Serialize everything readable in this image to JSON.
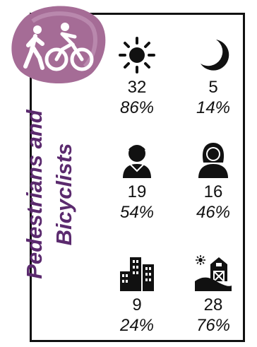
{
  "title_lines": [
    "Pedestrians and",
    "Bicyclists"
  ],
  "colors": {
    "accent": "#5b2a6e",
    "badge": "#a56c96"
  },
  "rows": [
    {
      "left": {
        "icon": "sun-icon",
        "count": "32",
        "percent": "86%"
      },
      "right": {
        "icon": "moon-icon",
        "count": "5",
        "percent": "14%"
      }
    },
    {
      "left": {
        "icon": "male-person-icon",
        "count": "19",
        "percent": "54%"
      },
      "right": {
        "icon": "female-person-icon",
        "count": "16",
        "percent": "46%"
      }
    },
    {
      "left": {
        "icon": "city-buildings-icon",
        "count": "9",
        "percent": "24%"
      },
      "right": {
        "icon": "rural-barn-icon",
        "count": "28",
        "percent": "76%"
      }
    }
  ]
}
